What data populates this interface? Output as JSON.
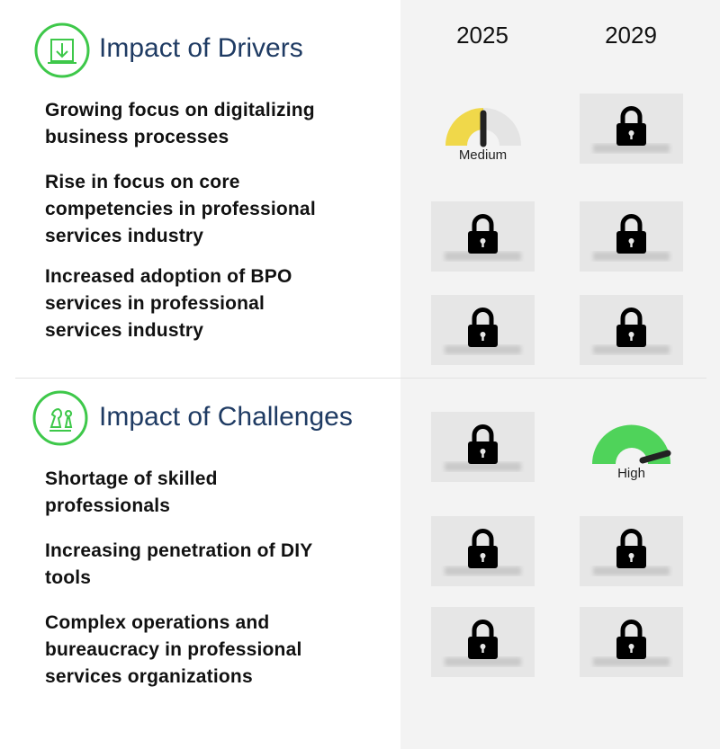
{
  "columns": [
    "2025",
    "2029"
  ],
  "sections": [
    {
      "title": "Impact of Drivers",
      "items": [
        {
          "label": "Growing focus on digitalizing business processes",
          "ratings": [
            "Medium",
            null
          ]
        },
        {
          "label": "Rise in focus on core competencies in professional services industry",
          "ratings": [
            null,
            null
          ]
        },
        {
          "label": "Increased adoption of BPO services in professional services industry",
          "ratings": [
            null,
            null
          ]
        }
      ]
    },
    {
      "title": "Impact of Challenges",
      "items": [
        {
          "label": "Shortage of skilled professionals",
          "ratings": [
            null,
            "High"
          ]
        },
        {
          "label": "Increasing penetration of DIY tools",
          "ratings": [
            null,
            null
          ]
        },
        {
          "label": "Complex operations and bureaucracy in professional services organizations",
          "ratings": [
            null,
            null
          ]
        }
      ]
    }
  ]
}
